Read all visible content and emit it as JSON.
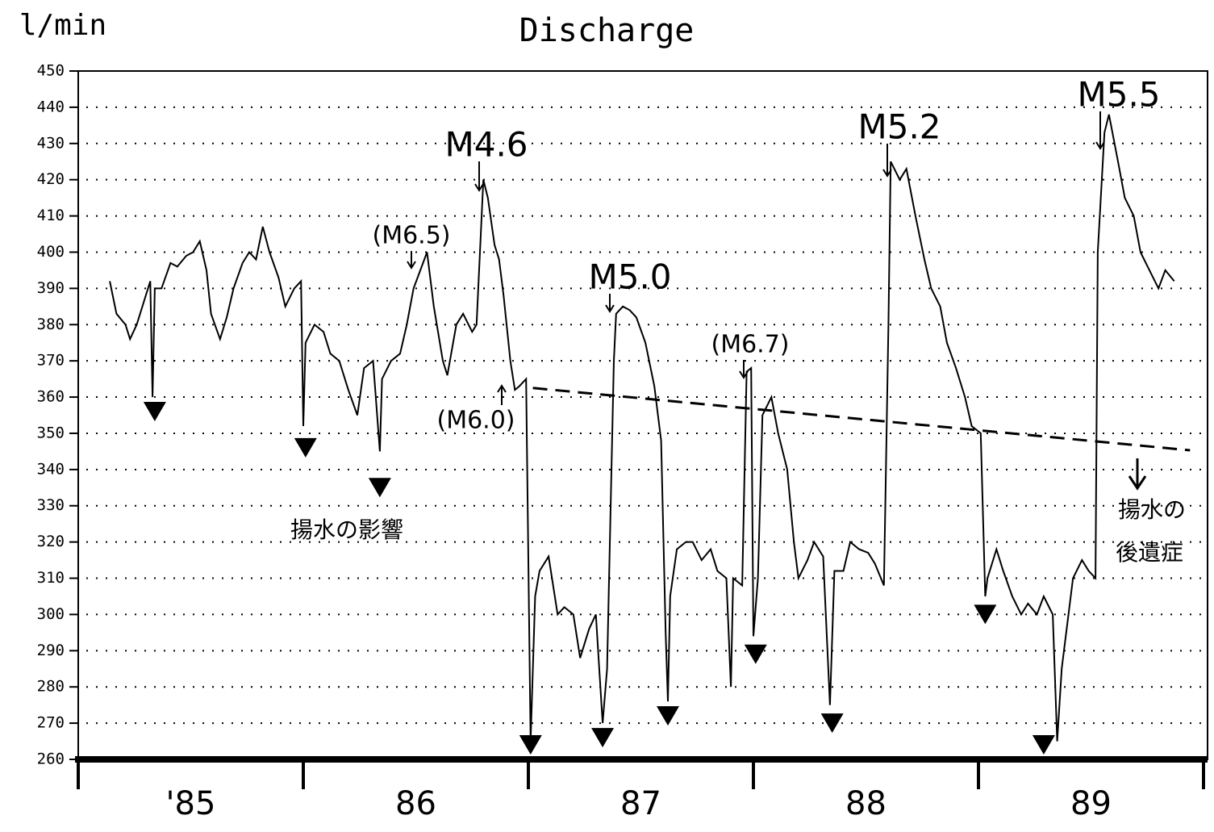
{
  "chart_data": {
    "type": "line",
    "title": "Discharge",
    "ylabel": "l/min",
    "color": "#000000",
    "xlim": [
      1985,
      1990
    ],
    "ylim": [
      260,
      450
    ],
    "yticks": [
      260,
      270,
      280,
      290,
      300,
      310,
      320,
      330,
      340,
      350,
      360,
      370,
      380,
      390,
      400,
      410,
      420,
      430,
      440,
      450
    ],
    "xticks": [
      {
        "value": 1985.5,
        "label": "'85"
      },
      {
        "value": 1986.5,
        "label": "86"
      },
      {
        "value": 1987.5,
        "label": "87"
      },
      {
        "value": 1988.5,
        "label": "88"
      },
      {
        "value": 1989.5,
        "label": "89"
      }
    ],
    "xminor": [
      1985,
      1986,
      1987,
      1988,
      1989,
      1990
    ],
    "grid": true,
    "x": [
      1985.14,
      1985.17,
      1985.21,
      1985.23,
      1985.26,
      1985.3,
      1985.32,
      1985.33,
      1985.34,
      1985.37,
      1985.41,
      1985.44,
      1985.48,
      1985.51,
      1985.54,
      1985.57,
      1985.59,
      1985.63,
      1985.66,
      1985.69,
      1985.73,
      1985.76,
      1985.79,
      1985.82,
      1985.85,
      1985.89,
      1985.92,
      1985.96,
      1985.99,
      1986.0,
      1986.01,
      1986.05,
      1986.09,
      1986.12,
      1986.16,
      1986.2,
      1986.24,
      1986.27,
      1986.31,
      1986.34,
      1986.35,
      1986.39,
      1986.43,
      1986.46,
      1986.49,
      1986.52,
      1986.55,
      1986.58,
      1986.62,
      1986.64,
      1986.68,
      1986.71,
      1986.75,
      1986.77,
      1986.8,
      1986.82,
      1986.85,
      1986.87,
      1986.89,
      1986.92,
      1986.94,
      1986.96,
      1986.99,
      1987.01,
      1987.03,
      1987.05,
      1987.09,
      1987.13,
      1987.16,
      1987.2,
      1987.23,
      1987.27,
      1987.3,
      1987.33,
      1987.35,
      1987.38,
      1987.39,
      1987.42,
      1987.45,
      1987.48,
      1987.52,
      1987.56,
      1987.59,
      1987.61,
      1987.62,
      1987.63,
      1987.66,
      1987.7,
      1987.73,
      1987.77,
      1987.81,
      1987.84,
      1987.88,
      1987.9,
      1987.91,
      1987.95,
      1987.97,
      1987.99,
      1988.0,
      1988.02,
      1988.04,
      1988.08,
      1988.11,
      1988.15,
      1988.18,
      1988.2,
      1988.24,
      1988.27,
      1988.31,
      1988.34,
      1988.36,
      1988.4,
      1988.43,
      1988.47,
      1988.51,
      1988.54,
      1988.58,
      1988.6,
      1988.61,
      1988.65,
      1988.68,
      1988.72,
      1988.76,
      1988.79,
      1988.83,
      1988.86,
      1988.9,
      1988.94,
      1988.97,
      1989.01,
      1989.03,
      1989.04,
      1989.08,
      1989.11,
      1989.15,
      1989.19,
      1989.22,
      1989.26,
      1989.29,
      1989.33,
      1989.35,
      1989.37,
      1989.38,
      1989.42,
      1989.46,
      1989.49,
      1989.52,
      1989.53,
      1989.56,
      1989.58,
      1989.62,
      1989.65,
      1989.69,
      1989.72,
      1989.76,
      1989.8,
      1989.83,
      1989.87
    ],
    "values": [
      392,
      383,
      380,
      376,
      380,
      388,
      392,
      360,
      390,
      390,
      397,
      396,
      399,
      400,
      403,
      395,
      383,
      376,
      382,
      390,
      397,
      400,
      398,
      407,
      400,
      393,
      385,
      390,
      392,
      352,
      375,
      380,
      378,
      372,
      370,
      362,
      355,
      368,
      370,
      345,
      365,
      370,
      372,
      380,
      390,
      395,
      400,
      385,
      370,
      366,
      380,
      383,
      378,
      380,
      420,
      415,
      402,
      398,
      388,
      370,
      362,
      363,
      365,
      265,
      305,
      312,
      316,
      300,
      302,
      300,
      288,
      296,
      300,
      270,
      285,
      370,
      383,
      385,
      384,
      382,
      375,
      363,
      348,
      295,
      276,
      305,
      318,
      320,
      320,
      315,
      318,
      312,
      310,
      280,
      310,
      308,
      367,
      368,
      294,
      310,
      355,
      360,
      350,
      340,
      320,
      310,
      315,
      320,
      316,
      275,
      312,
      312,
      320,
      318,
      317,
      314,
      308,
      380,
      425,
      420,
      423,
      410,
      398,
      390,
      385,
      375,
      368,
      360,
      352,
      350,
      305,
      310,
      318,
      312,
      305,
      300,
      303,
      300,
      305,
      300,
      265,
      285,
      290,
      310,
      315,
      312,
      310,
      400,
      433,
      438,
      425,
      415,
      410,
      400,
      395,
      390,
      395,
      392
    ],
    "trend": {
      "x": [
        1987.02,
        1989.94
      ],
      "values": [
        362.5,
        345.3
      ]
    },
    "markers": {
      "x": [
        1985.34,
        1986.01,
        1986.34,
        1987.01,
        1987.33,
        1987.62,
        1988.01,
        1988.35,
        1989.03,
        1989.29
      ],
      "values": [
        356,
        346,
        335,
        264,
        266,
        272,
        289,
        270,
        300,
        264
      ]
    },
    "annotations": [
      "(M6.5)",
      "M4.6",
      "(M6.0)",
      "M5.0",
      "(M6.7)",
      "M5.2",
      "M5.5",
      "揚水の影響",
      "揚水の",
      "後遺症"
    ]
  }
}
